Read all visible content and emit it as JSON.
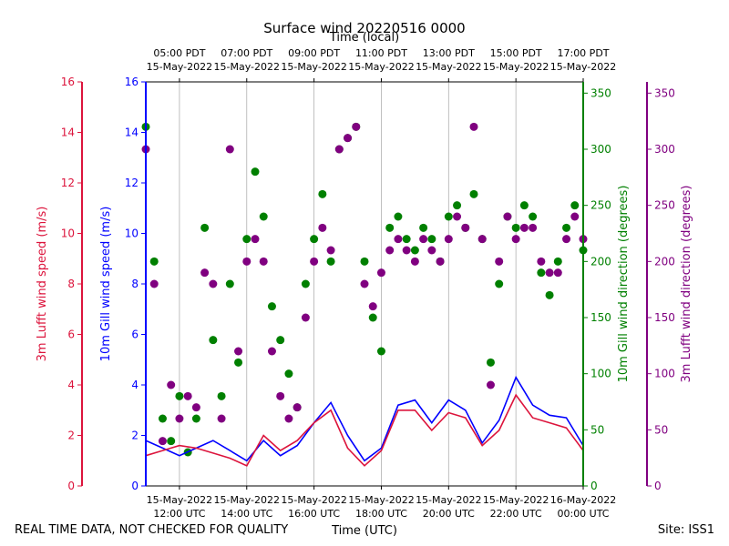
{
  "chart_data": {
    "type": "scatter+line",
    "title": "Surface wind 20220516 0000",
    "top_axis_label": "Time (local)",
    "xlabel": "Time (UTC)",
    "x_range_utc_hours": [
      11,
      24
    ],
    "utc_ticks": [
      {
        "hour": 12,
        "date": "15-May-2022",
        "time": "12:00 UTC"
      },
      {
        "hour": 14,
        "date": "15-May-2022",
        "time": "14:00 UTC"
      },
      {
        "hour": 16,
        "date": "15-May-2022",
        "time": "16:00 UTC"
      },
      {
        "hour": 18,
        "date": "15-May-2022",
        "time": "18:00 UTC"
      },
      {
        "hour": 20,
        "date": "15-May-2022",
        "time": "20:00 UTC"
      },
      {
        "hour": 22,
        "date": "15-May-2022",
        "time": "22:00 UTC"
      },
      {
        "hour": 24,
        "date": "16-May-2022",
        "time": "00:00 UTC"
      }
    ],
    "local_ticks": [
      {
        "hour": 12,
        "time": "05:00 PDT",
        "date": "15-May-2022"
      },
      {
        "hour": 14,
        "time": "07:00 PDT",
        "date": "15-May-2022"
      },
      {
        "hour": 16,
        "time": "09:00 PDT",
        "date": "15-May-2022"
      },
      {
        "hour": 18,
        "time": "11:00 PDT",
        "date": "15-May-2022"
      },
      {
        "hour": 20,
        "time": "13:00 PDT",
        "date": "15-May-2022"
      },
      {
        "hour": 22,
        "time": "15:00 PDT",
        "date": "15-May-2022"
      },
      {
        "hour": 24,
        "time": "17:00 PDT",
        "date": "15-May-2022"
      }
    ],
    "axes": {
      "lufft_speed": {
        "label": "3m Lufft wind speed (m/s)",
        "color": "#dc143c",
        "range": [
          0,
          16
        ],
        "ticks": [
          0,
          2,
          4,
          6,
          8,
          10,
          12,
          14,
          16
        ]
      },
      "gill_speed": {
        "label": "10m Gill wind speed (m/s)",
        "color": "#0000ff",
        "range": [
          0,
          16
        ],
        "ticks": [
          0,
          2,
          4,
          6,
          8,
          10,
          12,
          14,
          16
        ]
      },
      "gill_dir": {
        "label": "10m Gill wind direction (degrees)",
        "color": "#008000",
        "range": [
          0,
          360
        ],
        "ticks": [
          0,
          50,
          100,
          150,
          200,
          250,
          300,
          350
        ]
      },
      "lufft_dir": {
        "label": "3m Lufft wind direction (degrees)",
        "color": "#800080",
        "range": [
          0,
          360
        ],
        "ticks": [
          0,
          50,
          100,
          150,
          200,
          250,
          300,
          350
        ]
      }
    },
    "series": [
      {
        "name": "10m Gill wind speed",
        "kind": "line",
        "axis": "gill_speed",
        "color": "#0000ff",
        "x": [
          11.0,
          11.5,
          12.0,
          12.5,
          13.0,
          13.5,
          14.0,
          14.5,
          15.0,
          15.5,
          16.0,
          16.5,
          17.0,
          17.5,
          18.0,
          18.5,
          19.0,
          19.5,
          20.0,
          20.5,
          21.0,
          21.5,
          22.0,
          22.5,
          23.0,
          23.5,
          24.0
        ],
        "y": [
          1.8,
          1.5,
          1.2,
          1.5,
          1.8,
          1.4,
          1.0,
          1.8,
          1.2,
          1.6,
          2.5,
          3.3,
          2.0,
          1.0,
          1.5,
          3.2,
          3.4,
          2.5,
          3.4,
          3.0,
          1.7,
          2.6,
          4.3,
          3.2,
          2.8,
          2.7,
          1.6
        ]
      },
      {
        "name": "3m Lufft wind speed",
        "kind": "line",
        "axis": "lufft_speed",
        "color": "#dc143c",
        "x": [
          11.0,
          11.5,
          12.0,
          12.5,
          13.0,
          13.5,
          14.0,
          14.5,
          15.0,
          15.5,
          16.0,
          16.5,
          17.0,
          17.5,
          18.0,
          18.5,
          19.0,
          19.5,
          20.0,
          20.5,
          21.0,
          21.5,
          22.0,
          22.5,
          23.0,
          23.5,
          24.0
        ],
        "y": [
          1.2,
          1.4,
          1.6,
          1.5,
          1.3,
          1.1,
          0.8,
          2.0,
          1.4,
          1.8,
          2.5,
          3.0,
          1.5,
          0.8,
          1.4,
          3.0,
          3.0,
          2.2,
          2.9,
          2.7,
          1.6,
          2.2,
          3.6,
          2.7,
          2.5,
          2.3,
          1.4
        ]
      },
      {
        "name": "10m Gill wind direction",
        "kind": "scatter",
        "axis": "gill_dir",
        "color": "#008000",
        "x": [
          11.0,
          11.25,
          11.5,
          11.75,
          12.0,
          12.25,
          12.5,
          12.75,
          13.0,
          13.25,
          13.5,
          13.75,
          14.0,
          14.25,
          14.5,
          14.75,
          15.0,
          15.25,
          15.5,
          15.75,
          16.0,
          16.25,
          16.5,
          16.75,
          17.0,
          17.25,
          17.5,
          17.75,
          18.0,
          18.25,
          18.5,
          18.75,
          19.0,
          19.25,
          19.5,
          19.75,
          20.0,
          20.25,
          20.5,
          20.75,
          21.0,
          21.25,
          21.5,
          21.75,
          22.0,
          22.25,
          22.5,
          22.75,
          23.0,
          23.25,
          23.5,
          23.75,
          24.0
        ],
        "y": [
          320,
          200,
          60,
          40,
          80,
          30,
          60,
          230,
          130,
          80,
          180,
          110,
          220,
          280,
          240,
          160,
          130,
          100,
          70,
          180,
          220,
          260,
          200,
          300,
          310,
          320,
          200,
          150,
          120,
          230,
          240,
          220,
          210,
          230,
          220,
          200,
          240,
          250,
          230,
          260,
          220,
          110,
          180,
          240,
          230,
          250,
          240,
          190,
          170,
          200,
          230,
          250,
          210
        ]
      },
      {
        "name": "3m Lufft wind direction",
        "kind": "scatter",
        "axis": "lufft_dir",
        "color": "#800080",
        "x": [
          11.0,
          11.25,
          11.5,
          11.75,
          12.0,
          12.25,
          12.5,
          12.75,
          13.0,
          13.25,
          13.5,
          13.75,
          14.0,
          14.25,
          14.5,
          14.75,
          15.0,
          15.25,
          15.5,
          15.75,
          16.0,
          16.25,
          16.5,
          16.75,
          17.0,
          17.25,
          17.5,
          17.75,
          18.0,
          18.25,
          18.5,
          18.75,
          19.0,
          19.25,
          19.5,
          19.75,
          20.0,
          20.25,
          20.5,
          20.75,
          21.0,
          21.25,
          21.5,
          21.75,
          22.0,
          22.25,
          22.5,
          22.75,
          23.0,
          23.25,
          23.5,
          23.75,
          24.0
        ],
        "y": [
          300,
          180,
          40,
          90,
          60,
          80,
          70,
          190,
          180,
          60,
          300,
          120,
          200,
          220,
          200,
          120,
          80,
          60,
          70,
          150,
          200,
          230,
          210,
          300,
          310,
          320,
          180,
          160,
          190,
          210,
          220,
          210,
          200,
          220,
          210,
          200,
          220,
          240,
          230,
          320,
          220,
          90,
          200,
          240,
          220,
          230,
          230,
          200,
          190,
          190,
          220,
          240,
          220
        ]
      }
    ]
  },
  "footer": {
    "left_note": "REAL TIME DATA, NOT CHECKED FOR QUALITY",
    "site": "Site: ISS1"
  }
}
